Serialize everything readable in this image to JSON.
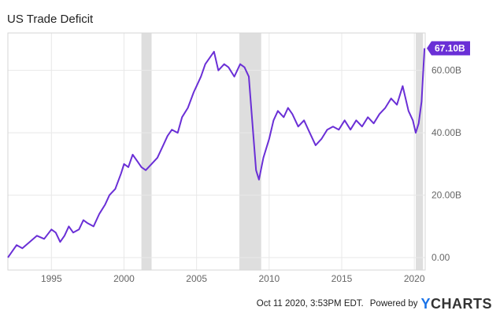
{
  "footer": {
    "timestamp": "Oct 11 2020, 3:53PM EDT.",
    "powered_by": "Powered by",
    "brand_y": "Y",
    "brand_rest": "CHARTS"
  },
  "colors": {
    "line": "#6a2fd6",
    "recession": "#dedede",
    "grid": "#e8e8e8",
    "label_bg": "#6a2fd6"
  },
  "chart_data": {
    "type": "line",
    "title": "US Trade Deficit",
    "xlabel": "",
    "ylabel": "",
    "xlim": [
      1992.0,
      2020.75
    ],
    "ylim": [
      -4,
      72
    ],
    "x_ticks": [
      {
        "value": 1995,
        "label": "1995"
      },
      {
        "value": 2000,
        "label": "2000"
      },
      {
        "value": 2005,
        "label": "2005"
      },
      {
        "value": 2010,
        "label": "2010"
      },
      {
        "value": 2015,
        "label": "2015"
      },
      {
        "value": 2020,
        "label": "2020"
      }
    ],
    "y_ticks": [
      {
        "value": 0,
        "label": "0.00"
      },
      {
        "value": 20,
        "label": "20.00B"
      },
      {
        "value": 40,
        "label": "40.00B"
      },
      {
        "value": 60,
        "label": "60.00B"
      }
    ],
    "grid": true,
    "recessions": [
      [
        2001.2,
        2001.9
      ],
      [
        2007.95,
        2009.45
      ],
      [
        2020.1,
        2020.6
      ]
    ],
    "last_value_label": "67.10B",
    "series": [
      {
        "x": [
          1992.0,
          1992.3,
          1992.6,
          1993.0,
          1993.5,
          1994.0,
          1994.5,
          1995.0,
          1995.3,
          1995.6,
          1995.9,
          1996.2,
          1996.5,
          1996.9,
          1997.2,
          1997.5,
          1997.9,
          1998.3,
          1998.7,
          1999.0,
          1999.4,
          1999.8,
          2000.0,
          2000.3,
          2000.6,
          2000.9,
          2001.2,
          2001.5,
          2001.9,
          2002.3,
          2002.7,
          2003.0,
          2003.3,
          2003.7,
          2004.0,
          2004.4,
          2004.8,
          2005.0,
          2005.3,
          2005.6,
          2005.9,
          2006.2,
          2006.5,
          2006.9,
          2007.2,
          2007.6,
          2008.0,
          2008.3,
          2008.6,
          2008.9,
          2009.1,
          2009.3,
          2009.6,
          2010.0,
          2010.3,
          2010.6,
          2011.0,
          2011.3,
          2011.6,
          2012.0,
          2012.4,
          2012.8,
          2013.2,
          2013.6,
          2014.0,
          2014.4,
          2014.8,
          2015.2,
          2015.6,
          2016.0,
          2016.4,
          2016.8,
          2017.2,
          2017.6,
          2018.0,
          2018.4,
          2018.8,
          2019.2,
          2019.6,
          2019.9,
          2020.1,
          2020.3,
          2020.5,
          2020.7
        ],
        "y": [
          0,
          2,
          4,
          3,
          5,
          7,
          6,
          9,
          8,
          5,
          7,
          10,
          8,
          9,
          12,
          11,
          10,
          14,
          17,
          20,
          22,
          27,
          30,
          29,
          33,
          31,
          29,
          28,
          30,
          32,
          36,
          39,
          41,
          40,
          45,
          48,
          53,
          55,
          58,
          62,
          64,
          66,
          60,
          62,
          61,
          58,
          62,
          61,
          58,
          40,
          28,
          25,
          32,
          38,
          44,
          47,
          45,
          48,
          46,
          42,
          44,
          40,
          36,
          38,
          41,
          42,
          41,
          44,
          41,
          44,
          42,
          45,
          43,
          46,
          48,
          51,
          49,
          55,
          47,
          44,
          40,
          43,
          50,
          67.1
        ]
      }
    ]
  }
}
